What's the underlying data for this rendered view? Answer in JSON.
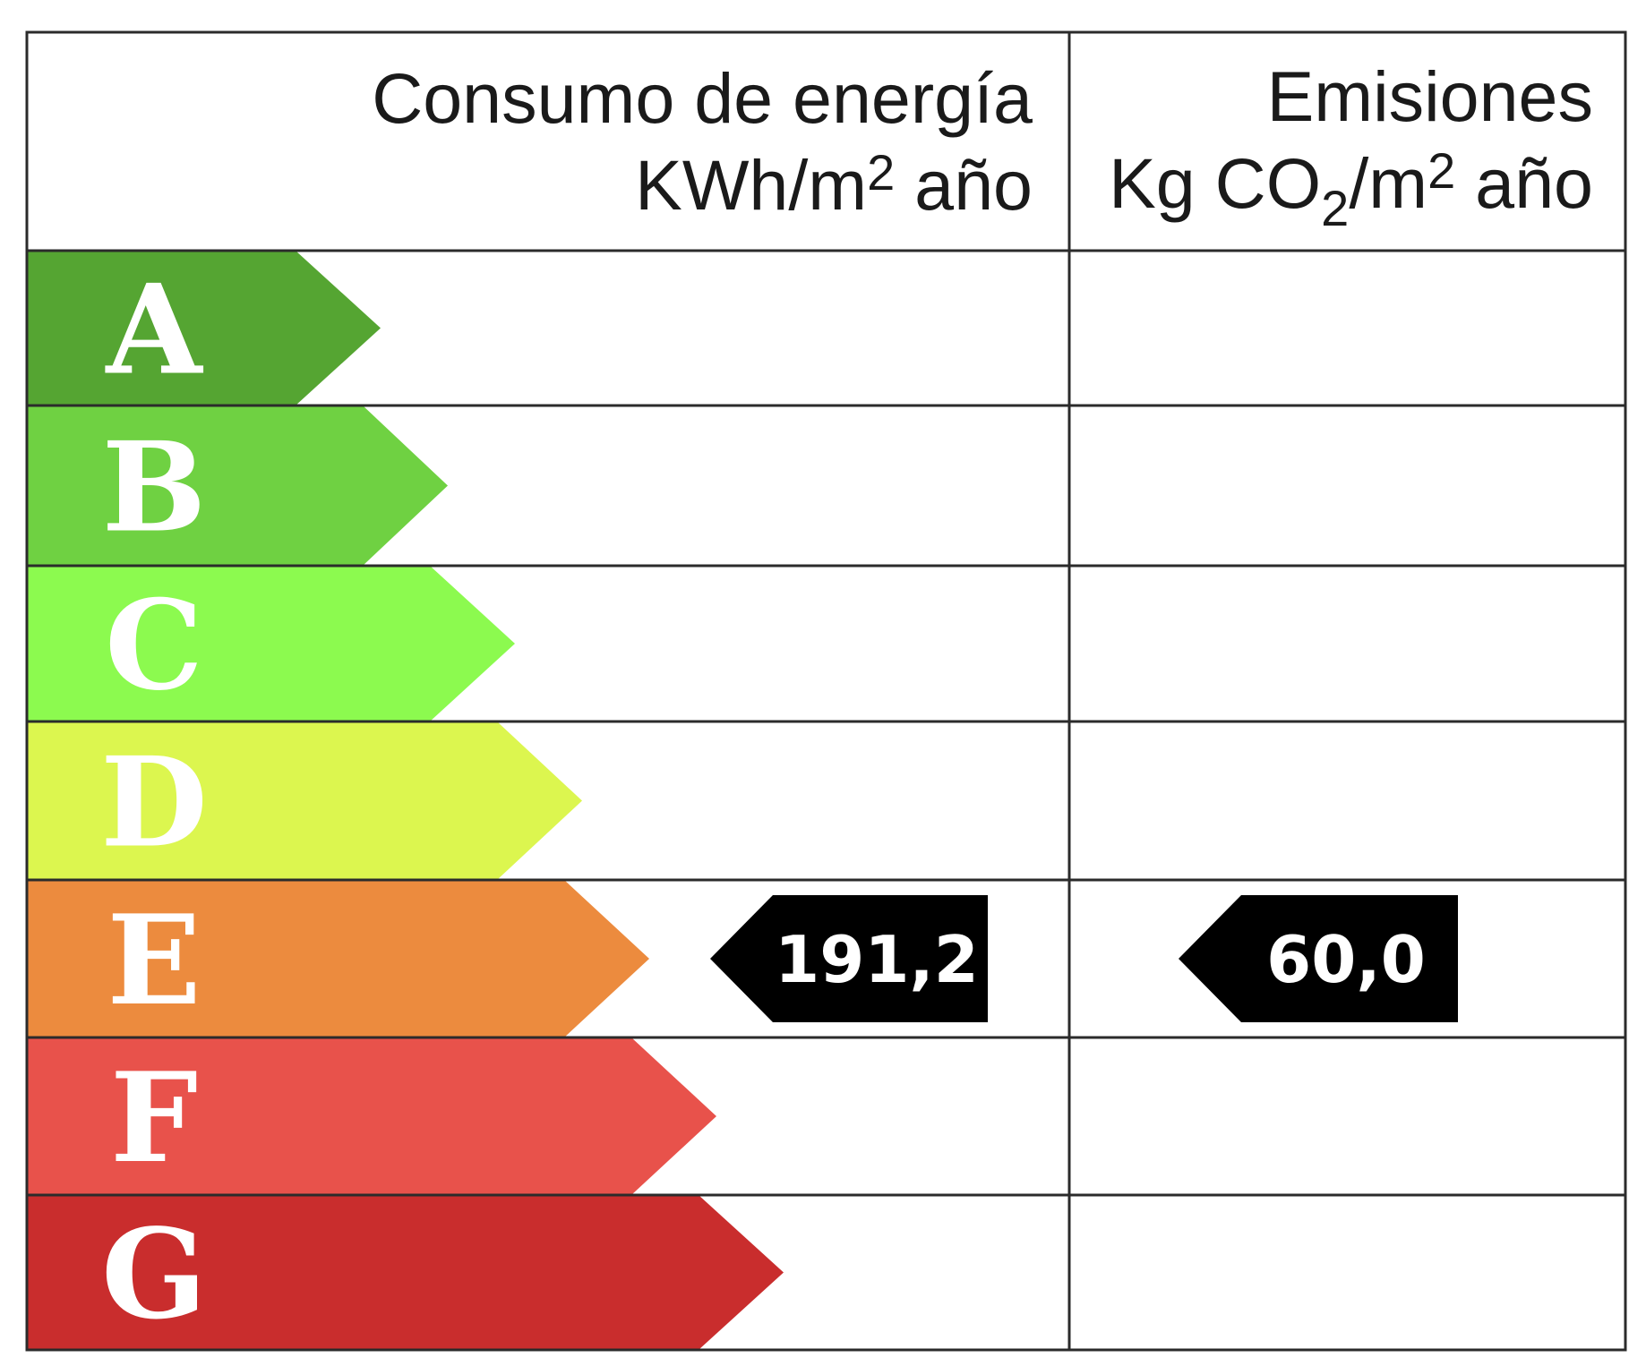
{
  "header": {
    "energy": {
      "title": "Consumo de energía",
      "unit_main": "KWh/m",
      "unit_sup": "2",
      "unit_end": " año"
    },
    "emissions": {
      "title": "Emisiones",
      "unit_main": "Kg CO",
      "unit_sub": "2",
      "unit_mid": "/m",
      "unit_sup": "2",
      "unit_end": " año"
    }
  },
  "grades": [
    {
      "letter": "A",
      "color": "#55a532"
    },
    {
      "letter": "B",
      "color": "#6fd142"
    },
    {
      "letter": "C",
      "color": "#8cfa4f"
    },
    {
      "letter": "D",
      "color": "#dcf64f"
    },
    {
      "letter": "E",
      "color": "#ec8b3e"
    },
    {
      "letter": "F",
      "color": "#e8524b"
    },
    {
      "letter": "G",
      "color": "#c92d2d"
    }
  ],
  "rating": {
    "energy": {
      "grade": "E",
      "value": "191,2"
    },
    "emissions": {
      "grade": "E",
      "value": "60,0"
    }
  },
  "indicator_color": "#000000"
}
